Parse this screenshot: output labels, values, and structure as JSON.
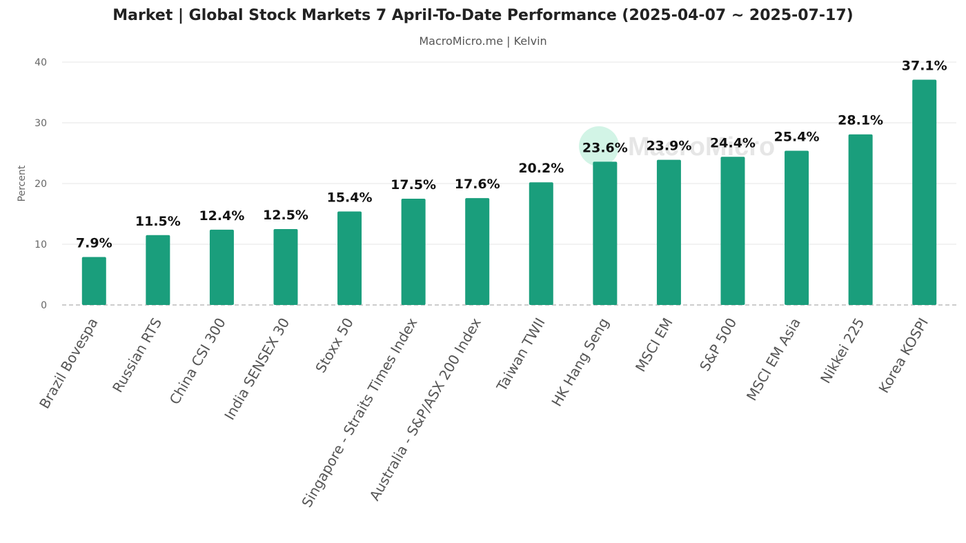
{
  "chart_data": {
    "type": "bar",
    "title": "Market | Global Stock Markets 7 April-To-Date Performance (2025-04-07 ~ 2025-07-17)",
    "subtitle": "MacroMicro.me | Kelvin",
    "ylabel": "Percent",
    "xlabel": "",
    "ylim": [
      0,
      40
    ],
    "yticks": [
      0,
      10,
      20,
      30,
      40
    ],
    "grid": true,
    "legend": "none",
    "categories": [
      "Brazil Bovespa",
      "Russian RTS",
      "China CSI 300",
      "India SENSEX 30",
      "Stoxx 50",
      "Singapore - Straits Times Index",
      "Australia - S&P/ASX 200 Index",
      "Taiwan TWII",
      "HK Hang Seng",
      "MSCI EM",
      "S&P 500",
      "MSCI EM Asia",
      "Nikkei 225",
      "Korea KOSPI"
    ],
    "values": [
      7.9,
      11.5,
      12.4,
      12.5,
      15.4,
      17.5,
      17.6,
      20.2,
      23.6,
      23.9,
      24.4,
      25.4,
      28.1,
      37.1
    ],
    "data_labels": [
      "7.9%",
      "11.5%",
      "12.4%",
      "12.5%",
      "15.4%",
      "17.5%",
      "17.6%",
      "20.2%",
      "23.6%",
      "23.9%",
      "24.4%",
      "25.4%",
      "28.1%",
      "37.1%"
    ],
    "bar_color": "#1a9e7c",
    "watermark": "MacroMicro"
  }
}
